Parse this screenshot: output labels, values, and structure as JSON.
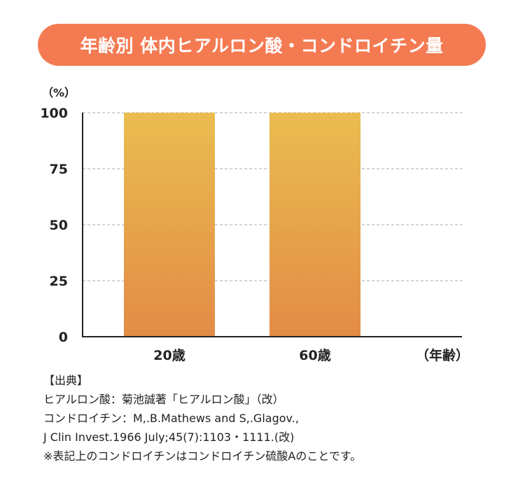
{
  "title": "年齢別  体内ヒアルロン酸・コンドロイチン量",
  "colors": {
    "title_background": "#f47a52",
    "bar_top": "#eabd50",
    "bar_bottom": "#e38b46",
    "gridline": "#aaaaaa",
    "axis": "#222222"
  },
  "chart_data": {
    "type": "bar",
    "categories": [
      "20歳",
      "60歳"
    ],
    "values": [
      100,
      100
    ],
    "y_unit_label": "（%）",
    "x_unit_label": "（年齢）",
    "yticks": [
      0,
      25,
      50,
      75,
      100
    ],
    "ylim": [
      0,
      100
    ],
    "grid": "horizontal dashed"
  },
  "source": {
    "heading": "【出典】",
    "lines": [
      "ヒアルロン酸：菊池誠著「ヒアルロン酸」（改）",
      "コンドロイチン：M,.B.Mathews and S,.Glagov.,",
      "J Clin Invest.1966 July;45(7):1103・1111.(改)",
      "※表記上のコンドロイチンはコンドロイチン硫酸Aのことです。"
    ]
  }
}
